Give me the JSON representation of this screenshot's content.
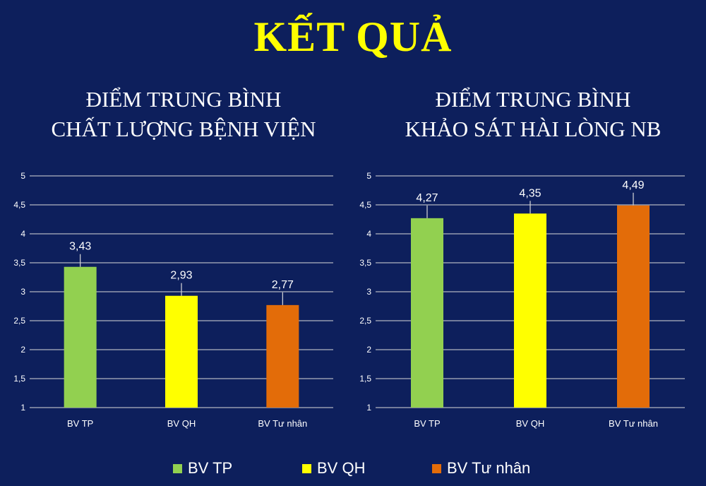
{
  "slide": {
    "title": "KẾT QUẢ"
  },
  "chart_data": [
    {
      "type": "bar",
      "title_lines": [
        "ĐIỂM TRUNG BÌNH",
        "CHẤT LƯỢNG BỆNH VIỆN"
      ],
      "categories": [
        "BV TP",
        "BV QH",
        "BV Tư nhân"
      ],
      "values": [
        3.43,
        2.93,
        2.77
      ],
      "value_labels": [
        "3,43",
        "2,93",
        "2,77"
      ],
      "colors": [
        "#92d050",
        "#ffff00",
        "#e36c09"
      ],
      "ylim": [
        1,
        5
      ],
      "yticks": [
        "1",
        "1,5",
        "2",
        "2,5",
        "3",
        "3,5",
        "4",
        "4,5",
        "5"
      ],
      "error_bars": true,
      "grid": true
    },
    {
      "type": "bar",
      "title_lines": [
        "ĐIỂM TRUNG BÌNH",
        "KHẢO SÁT HÀI LÒNG NB"
      ],
      "categories": [
        "BV TP",
        "BV QH",
        "BV Tư nhân"
      ],
      "values": [
        4.27,
        4.35,
        4.49
      ],
      "value_labels": [
        "4,27",
        "4,35",
        "4,49"
      ],
      "colors": [
        "#92d050",
        "#ffff00",
        "#e36c09"
      ],
      "ylim": [
        1,
        5
      ],
      "yticks": [
        "1",
        "1,5",
        "2",
        "2,5",
        "3",
        "3,5",
        "4",
        "4,5",
        "5"
      ],
      "error_bars": true,
      "grid": true
    }
  ],
  "legend": {
    "placement": "bottom",
    "items": [
      {
        "label": "BV TP",
        "color": "#92d050"
      },
      {
        "label": "BV QH",
        "color": "#ffff00"
      },
      {
        "label": "BV Tư nhân",
        "color": "#e36c09"
      }
    ]
  }
}
